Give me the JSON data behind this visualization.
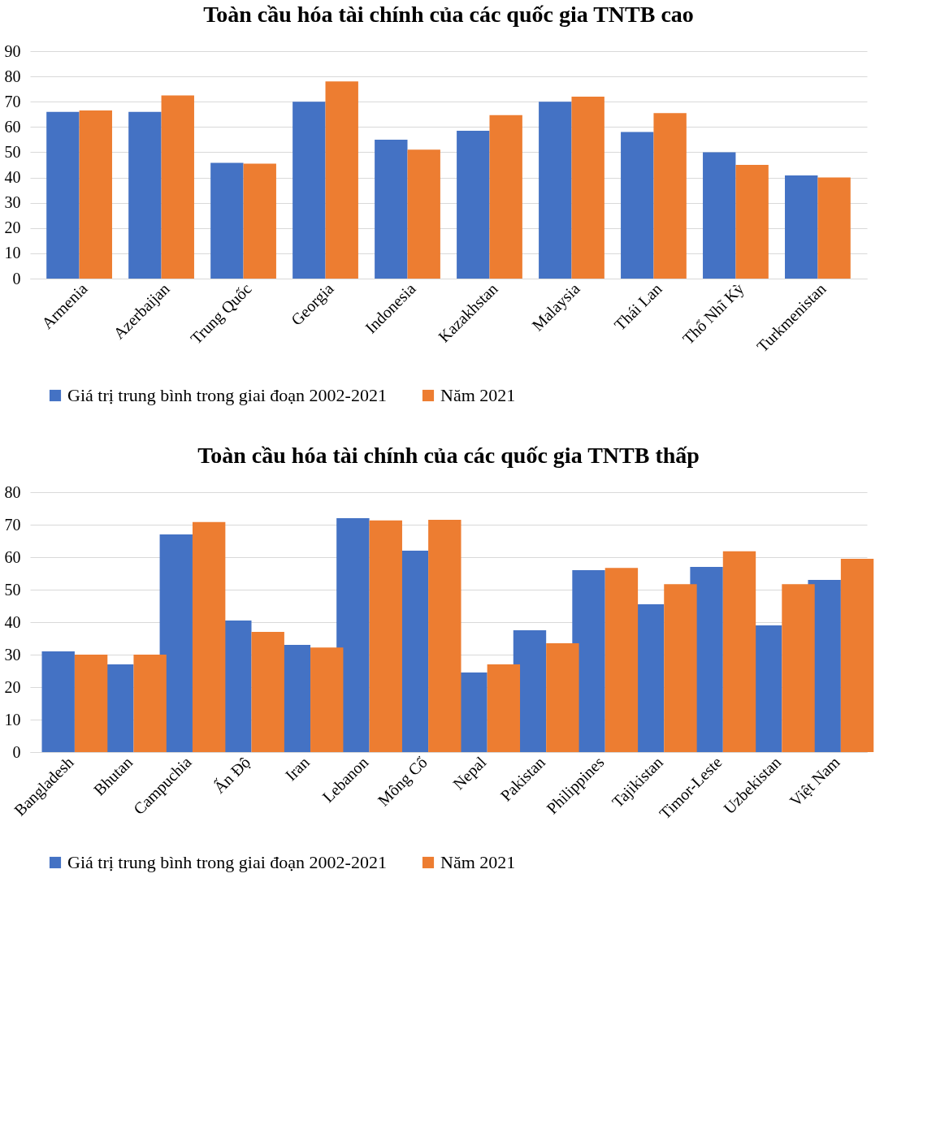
{
  "chart_data": [
    {
      "type": "bar",
      "title": "Toàn cầu hóa tài chính của các quốc gia TNTB cao",
      "categories": [
        "Armenia",
        "Azerbaijan",
        "Trung Quốc",
        "Georgia",
        "Indonesia",
        "Kazakhstan",
        "Malaysia",
        "Thái Lan",
        "Thổ Nhĩ Kỳ",
        "Turkmenistan"
      ],
      "series": [
        {
          "name": "Giá trị trung bình trong giai đoạn 2002-2021",
          "color": "#4472c4",
          "values": [
            66,
            66,
            45.8,
            70,
            55,
            58.5,
            70,
            58,
            50,
            40.8
          ]
        },
        {
          "name": "Năm 2021",
          "color": "#ed7d31",
          "values": [
            66.5,
            72.5,
            45.5,
            78,
            51,
            64.7,
            72,
            65.5,
            45,
            40
          ]
        }
      ],
      "ylim": [
        0,
        90
      ],
      "yticks": [
        0,
        10,
        20,
        30,
        40,
        50,
        60,
        70,
        80,
        90
      ],
      "grid": "y",
      "legend": "bottom"
    },
    {
      "type": "bar",
      "title": "Toàn cầu hóa tài chính của các quốc gia TNTB thấp",
      "categories": [
        "Bangladesh",
        "Bhutan",
        "Campuchia",
        "Ấn Độ",
        "Iran",
        "Lebanon",
        "Mông Cổ",
        "Nepal",
        "Pakistan",
        "Philippines",
        "Tajikistan",
        "Timor-Leste",
        "Uzbekistan",
        "Việt Nam"
      ],
      "series": [
        {
          "name": "Giá trị trung bình trong giai đoạn 2002-2021",
          "color": "#4472c4",
          "values": [
            31,
            27,
            67,
            40.5,
            33,
            72,
            62,
            24.5,
            37.5,
            56,
            45.5,
            57,
            39,
            53
          ]
        },
        {
          "name": "Năm 2021",
          "color": "#ed7d31",
          "values": [
            30,
            30,
            70.8,
            37,
            32.2,
            71.3,
            71.5,
            27,
            33.5,
            56.7,
            51.7,
            61.8,
            51.7,
            59.5
          ]
        }
      ],
      "ylim": [
        0,
        80
      ],
      "yticks": [
        0,
        10,
        20,
        30,
        40,
        50,
        60,
        70,
        80
      ],
      "grid": "y",
      "legend": "bottom"
    }
  ]
}
